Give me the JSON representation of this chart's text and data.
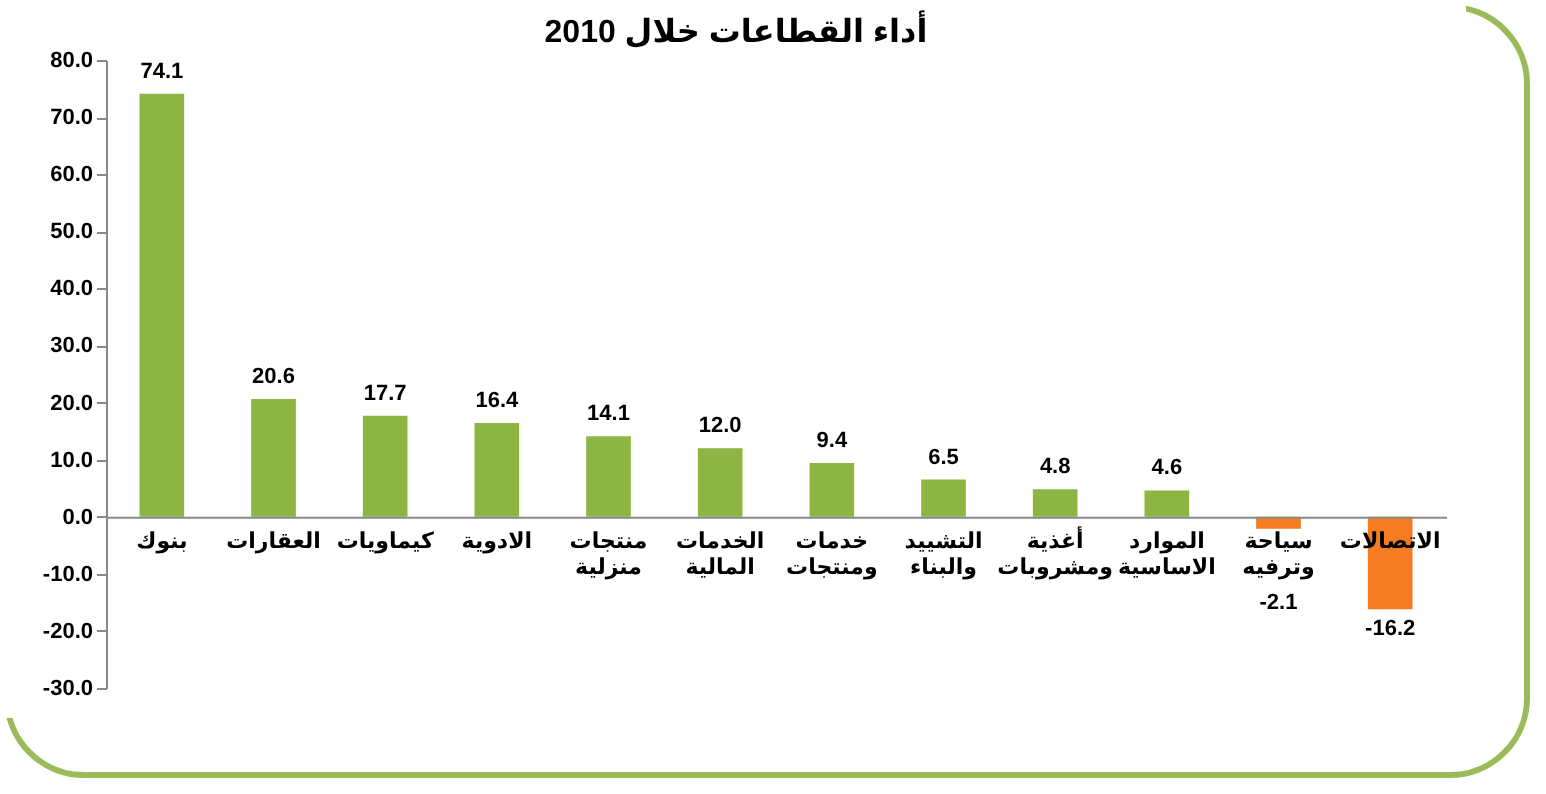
{
  "chart_data": {
    "type": "bar",
    "title": "أداء القطاعات خلال 2010",
    "categories": [
      "بنوك",
      "العقارات",
      "كيماويات",
      "الادوية",
      "منتجات منزلية",
      "الخدمات المالية",
      "خدمات ومنتجات",
      "التشييد والبناء",
      "أغذية ومشروبات",
      "الموارد الاساسية",
      "سياحة وترفيه",
      "الاتصالات"
    ],
    "values": [
      74.1,
      20.6,
      17.7,
      16.4,
      14.1,
      12.0,
      9.4,
      6.5,
      4.8,
      4.6,
      -2.1,
      -16.2
    ],
    "colors": [
      "#8db543",
      "#8db543",
      "#8db543",
      "#8db543",
      "#8db543",
      "#8db543",
      "#8db543",
      "#8db543",
      "#8db543",
      "#8db543",
      "#f57c20",
      "#f57c20"
    ],
    "ylim": [
      -30,
      80
    ],
    "yticks": [
      {
        "value": -30,
        "label": "-30.0"
      },
      {
        "value": -20,
        "label": "-20.0"
      },
      {
        "value": -10,
        "label": "-10.0"
      },
      {
        "value": 0,
        "label": "0.0"
      },
      {
        "value": 10,
        "label": "10.0"
      },
      {
        "value": 20,
        "label": "20.0"
      },
      {
        "value": 30,
        "label": "30.0"
      },
      {
        "value": 40,
        "label": "40.0"
      },
      {
        "value": 50,
        "label": "50.0"
      },
      {
        "value": 60,
        "label": "60.0"
      },
      {
        "value": 70,
        "label": "70.0"
      },
      {
        "value": 80,
        "label": "80.0"
      }
    ],
    "value_labels": [
      "74.1",
      "20.6",
      "17.7",
      "16.4",
      "14.1",
      "12.0",
      "9.4",
      "6.5",
      "4.8",
      "4.6",
      "-2.1",
      "-16.2"
    ],
    "grid": false,
    "legend": false
  }
}
